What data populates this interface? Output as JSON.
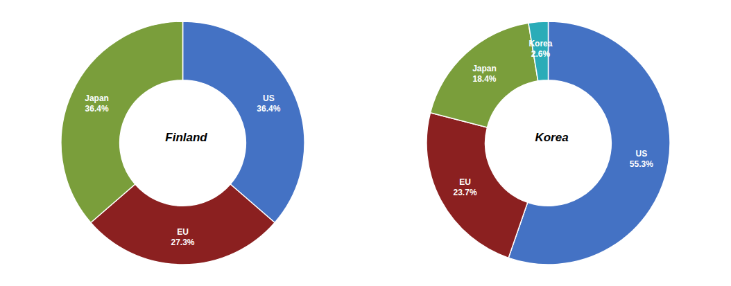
{
  "chart_data": [
    {
      "type": "donut",
      "title": "Finland",
      "categories": [
        "US",
        "EU",
        "Japan"
      ],
      "values": [
        36.4,
        27.3,
        36.4
      ],
      "value_labels": [
        "36.4%",
        "27.3%",
        "36.4%"
      ],
      "colors": [
        "#4472C4",
        "#8B2020",
        "#7A9E3B"
      ],
      "data_labels": true
    },
    {
      "type": "donut",
      "title": "Korea",
      "categories": [
        "US",
        "EU",
        "Japan",
        "Korea"
      ],
      "values": [
        55.3,
        23.7,
        18.4,
        2.6
      ],
      "value_labels": [
        "55.3%",
        "23.7%",
        "18.4%",
        "2.6%"
      ],
      "colors": [
        "#4472C4",
        "#8B2020",
        "#7A9E3B",
        "#2AACB8"
      ],
      "data_labels": true
    }
  ]
}
